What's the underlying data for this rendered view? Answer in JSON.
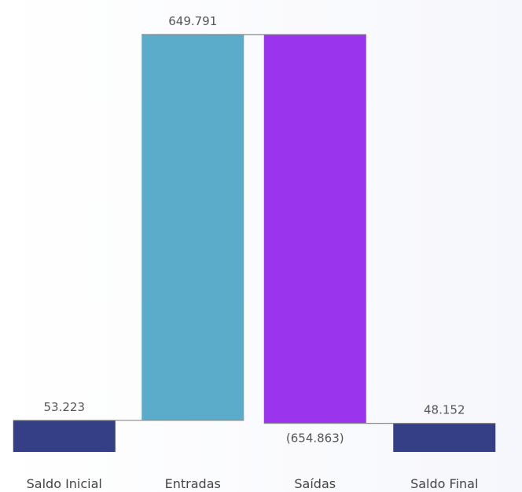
{
  "chart_data": {
    "type": "waterfall",
    "title": "",
    "xlabel": "",
    "ylabel": "",
    "categories": [
      "Saldo Inicial",
      "Entradas",
      "Saídas",
      "Saldo Final"
    ],
    "steps": [
      {
        "category": "Saldo Inicial",
        "kind": "total",
        "value": 53223,
        "label": "53.223"
      },
      {
        "category": "Entradas",
        "kind": "increase",
        "value": 649791,
        "label": "649.791"
      },
      {
        "category": "Saídas",
        "kind": "decrease",
        "value": -654863,
        "label": "(654.863)"
      },
      {
        "category": "Saldo Final",
        "kind": "total",
        "value": 48152,
        "label": "48.152"
      }
    ],
    "colors": {
      "total": "#343f86",
      "increase": "#5babcb",
      "decrease": "#9b35ed",
      "connector": "#888888"
    },
    "grid": false,
    "legend": "none"
  }
}
